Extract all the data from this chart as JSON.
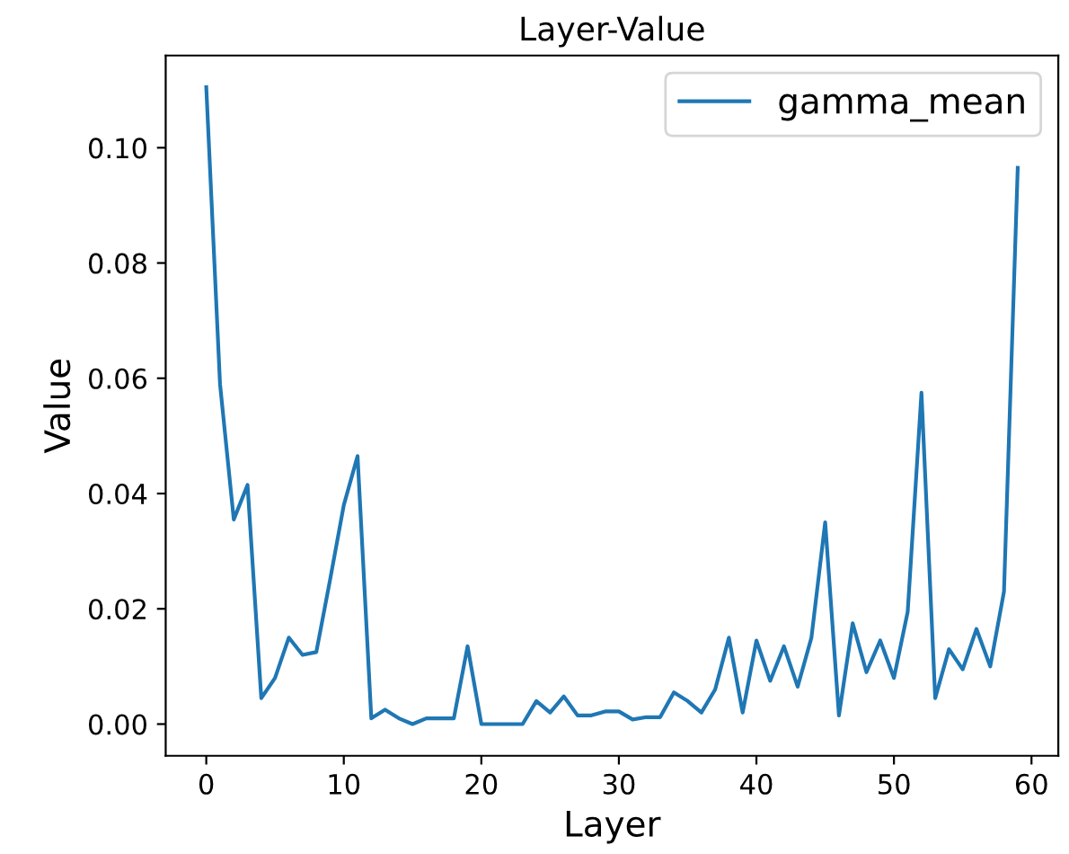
{
  "chart_data": {
    "type": "line",
    "title": "Layer-Value",
    "xlabel": "Layer",
    "ylabel": "Value",
    "x": [
      0,
      1,
      2,
      3,
      4,
      5,
      6,
      7,
      8,
      9,
      10,
      11,
      12,
      13,
      14,
      15,
      16,
      17,
      18,
      19,
      20,
      21,
      22,
      23,
      24,
      25,
      26,
      27,
      28,
      29,
      30,
      31,
      32,
      33,
      34,
      35,
      36,
      37,
      38,
      39,
      40,
      41,
      42,
      43,
      44,
      45,
      46,
      47,
      48,
      49,
      50,
      51,
      52,
      53,
      54,
      55,
      56,
      57,
      58,
      59
    ],
    "series": [
      {
        "name": "gamma_mean",
        "color": "#1f77b4",
        "values": [
          0.1105,
          0.059,
          0.0355,
          0.0415,
          0.0045,
          0.008,
          0.015,
          0.012,
          0.0125,
          0.025,
          0.038,
          0.0465,
          0.001,
          0.0025,
          0.001,
          0.0,
          0.001,
          0.001,
          0.001,
          0.0135,
          0.0,
          0.0,
          0.0,
          0.0,
          0.004,
          0.002,
          0.0048,
          0.0015,
          0.0015,
          0.0022,
          0.0022,
          0.0008,
          0.0012,
          0.0012,
          0.0055,
          0.004,
          0.002,
          0.006,
          0.015,
          0.002,
          0.0145,
          0.0075,
          0.0135,
          0.0065,
          0.015,
          0.035,
          0.0015,
          0.0175,
          0.009,
          0.0145,
          0.008,
          0.0195,
          0.0575,
          0.0045,
          0.013,
          0.0095,
          0.0165,
          0.01,
          0.023,
          0.0965
        ]
      }
    ],
    "xlim": [
      -2.95,
      61.95
    ],
    "ylim": [
      -0.0055,
      0.116
    ],
    "xticks": [
      0,
      10,
      20,
      30,
      40,
      50,
      60
    ],
    "yticks": [
      {
        "value": 0,
        "label": "0.00"
      },
      {
        "value": 0.02,
        "label": "0.02"
      },
      {
        "value": 0.04,
        "label": "0.04"
      },
      {
        "value": 0.06,
        "label": "0.06"
      },
      {
        "value": 0.08,
        "label": "0.08"
      },
      {
        "value": 0.1,
        "label": "0.10"
      }
    ],
    "legend": "top right",
    "grid": false,
    "line_style": "solid"
  }
}
